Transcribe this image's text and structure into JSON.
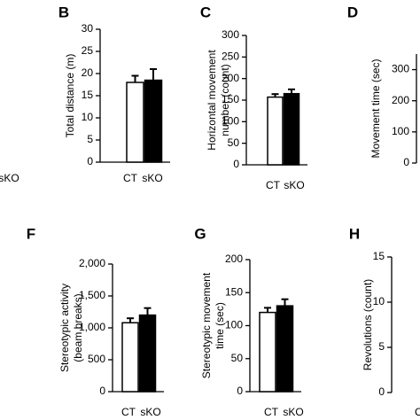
{
  "chart_data": [
    {
      "type": "bar",
      "categories": [
        "sKO"
      ]
    },
    {
      "type": "bar",
      "panel": "B",
      "ylabel": [
        "Total distance (m)"
      ],
      "categories": [
        "CT",
        "sKO"
      ],
      "values": [
        18,
        18.5
      ],
      "errors": [
        1.5,
        2.5
      ],
      "colors": [
        "#ffffff",
        "#000000"
      ],
      "ylim": [
        0,
        30
      ],
      "yticks": [
        0,
        5,
        10,
        15,
        20,
        25,
        30
      ]
    },
    {
      "type": "bar",
      "panel": "C",
      "ylabel": [
        "Horizontal movement",
        "number (count)"
      ],
      "categories": [
        "CT",
        "sKO"
      ],
      "values": [
        157,
        165
      ],
      "errors": [
        7,
        10
      ],
      "colors": [
        "#ffffff",
        "#000000"
      ],
      "ylim": [
        0,
        300
      ],
      "yticks": [
        0,
        50,
        100,
        150,
        200,
        250,
        300
      ]
    },
    {
      "type": "bar",
      "panel": "D",
      "ylabel": [
        "Movement time (sec)"
      ],
      "ylim": [
        0,
        350
      ],
      "yticks": [
        0,
        100,
        200,
        300
      ]
    },
    {
      "type": "bar",
      "panel": "F",
      "ylabel": [
        "Stereotypic activity",
        "(beam breaks)"
      ],
      "categories": [
        "CT",
        "sKO"
      ],
      "values": [
        1080,
        1200
      ],
      "errors": [
        70,
        110
      ],
      "colors": [
        "#ffffff",
        "#000000"
      ],
      "ylim": [
        0,
        2000
      ],
      "yticks": [
        0,
        {
          "value": 500,
          "label": "500"
        },
        {
          "value": 1000,
          "label": "1,000"
        },
        {
          "value": 1500,
          "label": "1,500"
        },
        {
          "value": 2000,
          "label": "2,000"
        }
      ]
    },
    {
      "type": "bar",
      "panel": "G",
      "ylabel": [
        "Stereotypic movement",
        "time (sec)"
      ],
      "categories": [
        "CT",
        "sKO"
      ],
      "values": [
        120,
        130
      ],
      "errors": [
        7,
        10
      ],
      "colors": [
        "#ffffff",
        "#000000"
      ],
      "ylim": [
        0,
        200
      ],
      "yticks": [
        0,
        50,
        100,
        150,
        200
      ]
    },
    {
      "type": "bar",
      "panel": "H",
      "ylabel": [
        "Revolutions (count)"
      ],
      "categories": [
        "CT"
      ],
      "ylim": [
        0,
        15
      ],
      "yticks": [
        0,
        5,
        10,
        15
      ]
    }
  ]
}
